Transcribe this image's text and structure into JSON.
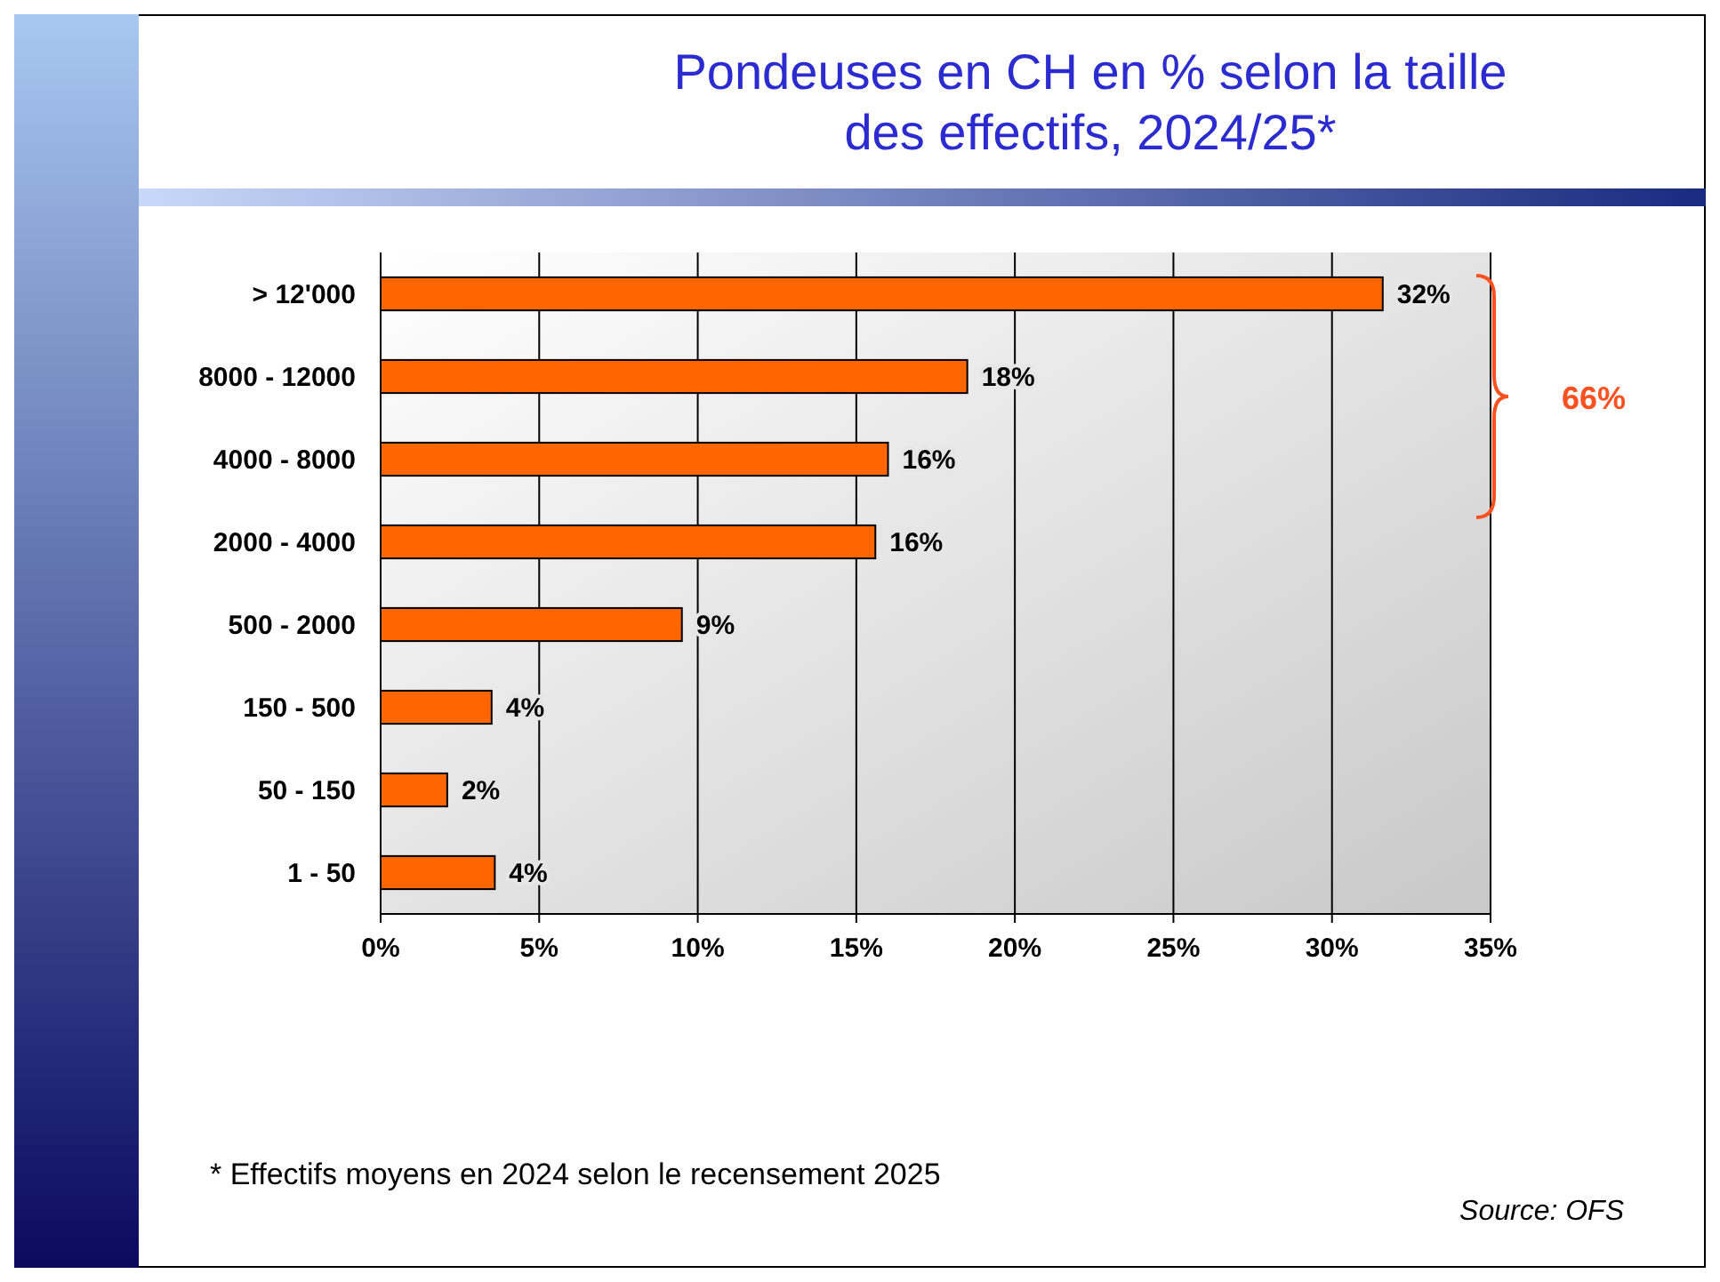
{
  "chart_data": {
    "type": "bar",
    "orientation": "horizontal",
    "title": "Pondeuses en CH en % selon la taille des effectifs, 2024/25*",
    "categories": [
      "> 12'000",
      "8000 - 12000",
      "4000 - 8000",
      "2000 - 4000",
      "500 - 2000",
      "150 - 500",
      "50 - 150",
      "1 - 50"
    ],
    "values": [
      31.6,
      18.5,
      16.0,
      15.6,
      9.5,
      3.5,
      2.1,
      3.6
    ],
    "value_labels": [
      "32%",
      "18%",
      "16%",
      "16%",
      "9%",
      "4%",
      "2%",
      "4%"
    ],
    "color": "#ff6600",
    "xlim": [
      0,
      35
    ],
    "xticks": [
      {
        "value": 0,
        "label": "0%"
      },
      {
        "value": 5,
        "label": "5%"
      },
      {
        "value": 10,
        "label": "10%"
      },
      {
        "value": 15,
        "label": "15%"
      },
      {
        "value": 20,
        "label": "20%"
      },
      {
        "value": 25,
        "label": "25%"
      },
      {
        "value": 30,
        "label": "30%"
      },
      {
        "value": 35,
        "label": "35%"
      }
    ],
    "grid": "x",
    "annotations": [
      "66%",
      "* Effectifs moyens en 2024 selon le recensement 2025",
      "Source: OFS"
    ]
  }
}
